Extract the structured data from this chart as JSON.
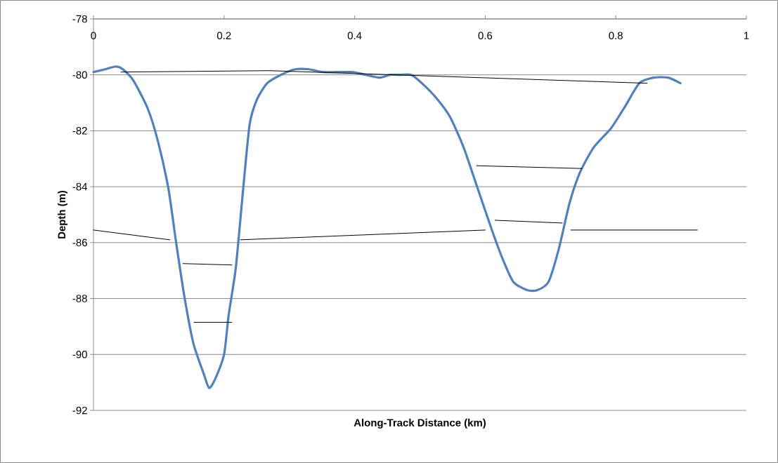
{
  "chart_data": {
    "type": "line",
    "xlabel": "Along-Track Distance (km)",
    "ylabel": "Depth (m)",
    "xlim": [
      0,
      1
    ],
    "xticks": [
      0,
      0.2,
      0.4,
      0.6,
      0.8,
      1
    ],
    "ylim": [
      -92,
      -78
    ],
    "yticks": [
      -92,
      -90,
      -88,
      -86,
      -84,
      -82,
      -80,
      -78
    ],
    "grid": "y",
    "marker": "none",
    "line_style": "solid",
    "series": [
      {
        "color": "#4f81bd",
        "x": [
          0,
          0.018,
          0.034,
          0.045,
          0.061,
          0.083,
          0.099,
          0.115,
          0.126,
          0.139,
          0.153,
          0.169,
          0.177,
          0.186,
          0.2,
          0.207,
          0.218,
          0.228,
          0.239,
          0.25,
          0.266,
          0.287,
          0.309,
          0.33,
          0.352,
          0.395,
          0.417,
          0.438,
          0.454,
          0.47,
          0.487,
          0.503,
          0.524,
          0.546,
          0.567,
          0.589,
          0.611,
          0.627,
          0.643,
          0.664,
          0.68,
          0.697,
          0.713,
          0.729,
          0.745,
          0.766,
          0.793,
          0.815,
          0.836,
          0.858,
          0.88,
          0.899
        ],
        "values": [
          -79.9,
          -79.8,
          -79.7,
          -79.8,
          -80.2,
          -81.2,
          -82.4,
          -84.1,
          -85.9,
          -87.9,
          -89.6,
          -90.7,
          -91.2,
          -90.9,
          -90.0,
          -88.6,
          -86.9,
          -84.4,
          -81.8,
          -80.9,
          -80.3,
          -80.0,
          -79.8,
          -79.8,
          -79.9,
          -79.9,
          -80.0,
          -80.1,
          -80.0,
          -80.0,
          -80.0,
          -80.3,
          -80.8,
          -81.5,
          -82.6,
          -84.1,
          -85.6,
          -86.6,
          -87.4,
          -87.7,
          -87.7,
          -87.4,
          -86.2,
          -84.6,
          -83.5,
          -82.6,
          -81.9,
          -81.1,
          -80.3,
          -80.1,
          -80.1,
          -80.3
        ]
      },
      {
        "color": "#000000",
        "x": [
          0.042,
          0.27,
          0.848
        ],
        "values": [
          -79.9,
          -79.85,
          -80.3
        ]
      },
      {
        "color": "#000000",
        "x": [
          0,
          0.117
        ],
        "values": [
          -85.55,
          -85.9
        ]
      },
      {
        "color": "#000000",
        "x": [
          0.225,
          0.6
        ],
        "values": [
          -85.9,
          -85.55
        ]
      },
      {
        "color": "#000000",
        "x": [
          0.137,
          0.212
        ],
        "values": [
          -86.75,
          -86.8
        ]
      },
      {
        "color": "#000000",
        "x": [
          0.154,
          0.212
        ],
        "values": [
          -88.85,
          -88.85
        ]
      },
      {
        "color": "#000000",
        "x": [
          0.587,
          0.748
        ],
        "values": [
          -83.25,
          -83.35
        ]
      },
      {
        "color": "#000000",
        "x": [
          0.615,
          0.718
        ],
        "values": [
          -85.2,
          -85.3
        ]
      },
      {
        "color": "#000000",
        "x": [
          0.731,
          0.925
        ],
        "values": [
          -85.55,
          -85.55
        ]
      }
    ]
  }
}
